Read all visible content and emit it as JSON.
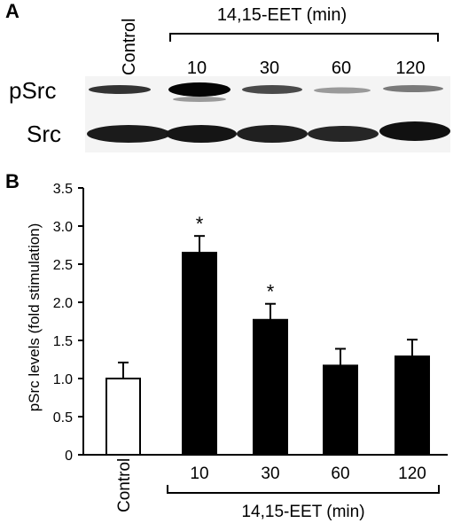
{
  "panels": {
    "a_letter": "A",
    "b_letter": "B"
  },
  "blot": {
    "control_label": "Control",
    "treatment_header": "14,15-EET (min)",
    "lane_labels": [
      "10",
      "30",
      "60",
      "120"
    ],
    "row_labels": [
      "pSrc",
      "Src"
    ]
  },
  "chart_data": {
    "type": "bar",
    "categories": [
      "Control",
      "10",
      "30",
      "60",
      "120"
    ],
    "values": [
      1.0,
      2.65,
      1.77,
      1.17,
      1.29
    ],
    "errors": [
      0.21,
      0.22,
      0.21,
      0.22,
      0.22
    ],
    "significance": [
      "",
      "*",
      "*",
      "",
      ""
    ],
    "bar_fill": [
      "#ffffff",
      "#000000",
      "#000000",
      "#000000",
      "#000000"
    ],
    "ylabel": "pSrc levels (fold stimulation)",
    "ylim": [
      0,
      3.5
    ],
    "yticks": [
      "0",
      "0.5",
      "1.0",
      "1.5",
      "2.0",
      "2.5",
      "3.0",
      "3.5"
    ],
    "group_label": "14,15-EET (min)",
    "grid": false,
    "legend": "none"
  }
}
